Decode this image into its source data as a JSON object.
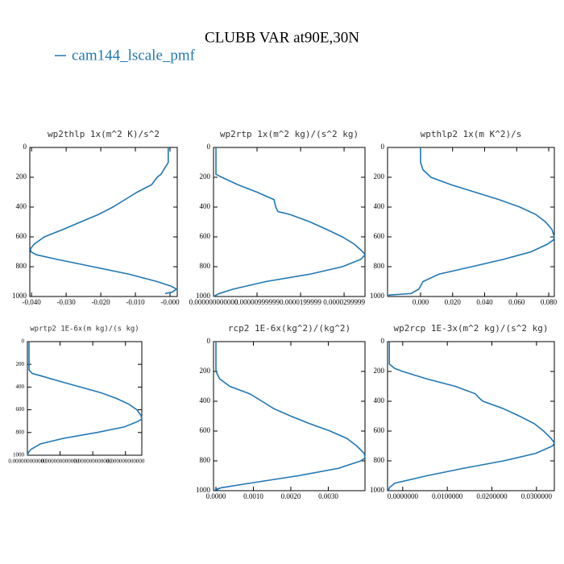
{
  "title": "CLUBB VAR at90E,30N",
  "legend": {
    "name": "cam144_lscale_pmf",
    "color": "#1f77b4"
  },
  "chart_data": [
    {
      "type": "line",
      "title": "wp2thlp   1x(m^2 K)/s^2",
      "color": "#1f77b4",
      "yinvert": true,
      "values": [
        -0.0005,
        -0.0005,
        -0.0026,
        -0.0037,
        -0.0053,
        -0.0095,
        -0.013,
        -0.0165,
        -0.0207,
        -0.0258,
        -0.0309,
        -0.0363,
        -0.0393,
        -0.0403,
        -0.0402,
        -0.0386,
        -0.0328,
        -0.0223,
        -0.0119,
        -0.0037,
        0.0002,
        0.0019,
        0.0007,
        -0.0014
      ],
      "y": [
        0,
        100,
        180,
        200,
        250,
        300,
        350,
        400,
        450,
        500,
        550,
        600,
        650,
        680,
        700,
        720,
        750,
        800,
        850,
        900,
        930,
        950,
        970,
        980
      ],
      "xlim": [
        -0.0405,
        0.0021
      ],
      "ylim": [
        0,
        1000
      ],
      "xticks": [
        {
          "value": -0.04,
          "label": "-0.040"
        },
        {
          "value": -0.03,
          "label": "-0.030"
        },
        {
          "value": -0.02,
          "label": "-0.020"
        },
        {
          "value": -0.01,
          "label": "-0.010"
        },
        {
          "value": 0,
          "label": "-0.000"
        }
      ],
      "yticks": [
        0,
        200,
        400,
        600,
        800,
        1000
      ]
    },
    {
      "type": "line",
      "title": "wp2rtp  1x(m^2 kg)/(s^2 kg)",
      "color": "#1f77b4",
      "yinvert": true,
      "values": [
        5.6e-07,
        5.6e-07,
        1.9e-06,
        5.6e-06,
        1e-05,
        1.39e-05,
        1.43e-05,
        1.48e-05,
        1.76e-05,
        2.22e-05,
        2.6e-05,
        2.96e-05,
        3.24e-05,
        3.43e-05,
        3.48e-05,
        3.39e-05,
        2.96e-05,
        2.22e-05,
        1.2e-05,
        4.6e-06,
        1.3e-06,
        0
      ],
      "y": [
        0,
        180,
        200,
        250,
        300,
        350,
        400,
        430,
        450,
        500,
        550,
        600,
        650,
        700,
        720,
        750,
        800,
        850,
        900,
        950,
        980,
        1000
      ],
      "xlim": [
        0,
        3.48e-05
      ],
      "ylim": [
        0,
        1000
      ],
      "xticks": [
        {
          "value": 0,
          "label": "0.000000000000"
        },
        {
          "value": 1e-05,
          "label": "0.00000999999"
        },
        {
          "value": 2e-05,
          "label": "0.0000199999"
        },
        {
          "value": 3e-05,
          "label": "0.0000299999"
        }
      ],
      "yticks": [
        0,
        200,
        400,
        600,
        800,
        1000
      ]
    },
    {
      "type": "line",
      "title": "wpthlp2  1x(m K^2)/s",
      "color": "#1f77b4",
      "yinvert": true,
      "values": [
        0,
        0,
        0.0015,
        0.0065,
        0.019,
        0.034,
        0.049,
        0.062,
        0.072,
        0.078,
        0.082,
        0.0835,
        0.083,
        0.079,
        0.069,
        0.052,
        0.032,
        0.0115,
        0.0015,
        -0.001,
        -0.006,
        -0.0195,
        -0.0205
      ],
      "y": [
        0,
        100,
        150,
        200,
        250,
        300,
        350,
        400,
        450,
        500,
        550,
        600,
        620,
        650,
        700,
        750,
        800,
        850,
        900,
        950,
        980,
        990,
        1000
      ],
      "xlim": [
        -0.0206,
        0.0835
      ],
      "ylim": [
        0,
        1000
      ],
      "xticks": [
        {
          "value": 0,
          "label": "0.000"
        },
        {
          "value": 0.02,
          "label": "0.020"
        },
        {
          "value": 0.04,
          "label": "0.040"
        },
        {
          "value": 0.06,
          "label": "0.060"
        },
        {
          "value": 0.08,
          "label": "0.080"
        }
      ],
      "yticks": [
        0,
        200,
        400,
        600,
        800,
        1000
      ]
    },
    {
      "type": "line",
      "title": "wprtp2  1E-6x(m kg)/(s kg)",
      "color": "#1f77b4",
      "yinvert": true,
      "values": [
        0.02,
        0.02,
        0.06,
        0.16,
        0.4,
        0.65,
        0.9,
        1.09,
        1.24,
        1.34,
        1.39,
        1.4,
        1.36,
        1.19,
        0.85,
        0.45,
        0.16,
        0.04,
        0.01,
        0
      ],
      "y": [
        0,
        250,
        280,
        300,
        350,
        400,
        450,
        500,
        550,
        600,
        650,
        680,
        700,
        750,
        800,
        850,
        900,
        950,
        980,
        1000
      ],
      "xlim": [
        0,
        1.4
      ],
      "ylim": [
        0,
        1000
      ],
      "xticks": [
        {
          "value": 0,
          "label": "0.000000000000"
        },
        {
          "value": 0.4,
          "label": "0.000000000000"
        },
        {
          "value": 0.8,
          "label": "0.000000000000"
        },
        {
          "value": 1.2,
          "label": "0.000000000000"
        }
      ],
      "yticks": [
        0,
        200,
        400,
        600,
        800,
        1000
      ]
    },
    {
      "type": "line",
      "title": "rcp2  1E-6x(kg^2)/(kg^2)",
      "color": "#1f77b4",
      "yinvert": true,
      "values": [
        0,
        0,
        0.0001,
        0.00037,
        0.0009,
        0.00123,
        0.00155,
        0.002,
        0.0025,
        0.00305,
        0.0035,
        0.00376,
        0.00396,
        0.00398,
        0.00387,
        0.00327,
        0.00219,
        0.0009,
        0.00015,
        0,
        0.0001
      ],
      "y": [
        0,
        200,
        250,
        300,
        350,
        400,
        450,
        500,
        550,
        600,
        650,
        700,
        750,
        780,
        800,
        850,
        900,
        950,
        980,
        990,
        1000
      ],
      "xlim": [
        -6.45e-05,
        0.00398
      ],
      "ylim": [
        0,
        1000
      ],
      "xticks": [
        {
          "value": 0,
          "label": "0.0000"
        },
        {
          "value": 0.001,
          "label": "0.0010"
        },
        {
          "value": 0.002,
          "label": "0.0020"
        },
        {
          "value": 0.003,
          "label": "0.0030"
        }
      ],
      "yticks": [
        0,
        200,
        400,
        600,
        800,
        1000
      ]
    },
    {
      "type": "line",
      "title": "wp2rcp  1E-3x(m^2 kg)/(s^2 kg)",
      "color": "#1f77b4",
      "yinvert": true,
      "values": [
        -0.003,
        -0.003,
        -0.0018,
        0,
        0.0054,
        0.0118,
        0.0163,
        0.0172,
        0.018,
        0.0226,
        0.0262,
        0.0295,
        0.0316,
        0.0333,
        0.034,
        0.0336,
        0.0298,
        0.0226,
        0.0136,
        0.0054,
        -0.0018,
        -0.003,
        -0.0032
      ],
      "y": [
        0,
        150,
        180,
        200,
        250,
        300,
        350,
        380,
        400,
        450,
        500,
        550,
        600,
        650,
        680,
        700,
        750,
        800,
        850,
        900,
        950,
        980,
        1000
      ],
      "xlim": [
        -0.0034,
        0.034
      ],
      "ylim": [
        0,
        1000
      ],
      "xticks": [
        {
          "value": 0,
          "label": "0.0000000"
        },
        {
          "value": 0.01,
          "label": "0.0100000"
        },
        {
          "value": 0.02,
          "label": "0.0200000"
        },
        {
          "value": 0.03,
          "label": "0.0300000"
        }
      ],
      "yticks": [
        0,
        200,
        400,
        600,
        800,
        1000
      ]
    }
  ]
}
